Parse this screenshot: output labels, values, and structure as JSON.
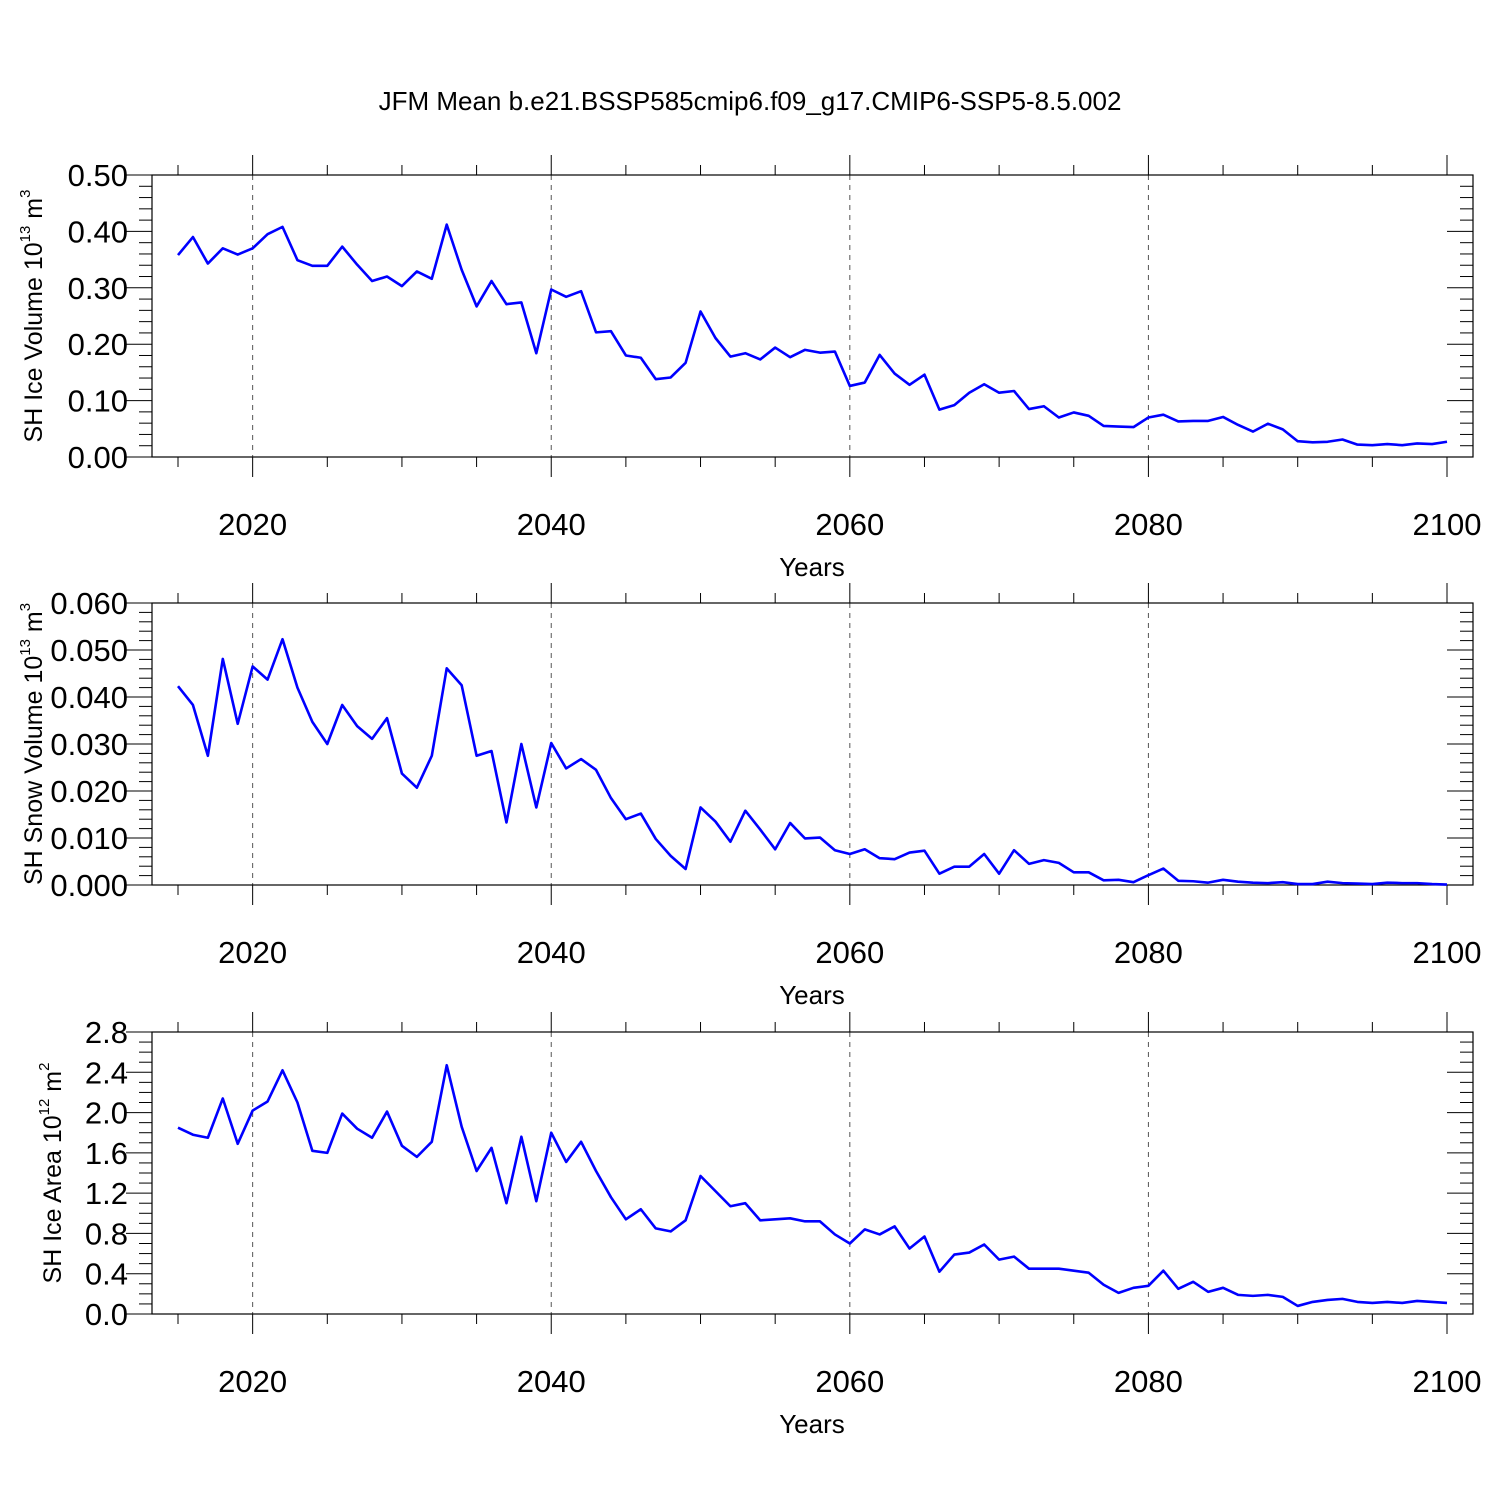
{
  "title": "JFM Mean b.e21.BSSP585cmip6.f09_g17.CMIP6-SSP5-8.5.002",
  "colors": {
    "line": "#0000ff",
    "axis": "#000000",
    "grid": "#555555"
  },
  "chart_data": [
    {
      "type": "line",
      "ylabel": {
        "main": "SH Ice Volume 10",
        "exp": "13",
        "unit": " m",
        "unit_exp": "3"
      },
      "xlabel": "Years",
      "xlim": [
        2015,
        2100
      ],
      "ylim": [
        0,
        0.5
      ],
      "x_ticks": [
        2020,
        2040,
        2060,
        2080,
        2100
      ],
      "x_tick_labels": [
        "2020",
        "2040",
        "2060",
        "2080",
        "2100"
      ],
      "y_ticks": [
        0,
        0.1,
        0.2,
        0.3,
        0.4,
        0.5
      ],
      "y_tick_labels": [
        "0.00",
        "0.10",
        "0.20",
        "0.30",
        "0.40",
        "0.50"
      ],
      "y_minor_step": 0.02,
      "gridlines_x": [
        2020,
        2040,
        2060,
        2080
      ],
      "series": [
        {
          "name": "SH Ice Volume",
          "x_start": 2015,
          "values": [
            0.358,
            0.39,
            0.343,
            0.37,
            0.359,
            0.37,
            0.395,
            0.408,
            0.349,
            0.339,
            0.339,
            0.373,
            0.341,
            0.312,
            0.32,
            0.303,
            0.329,
            0.316,
            0.412,
            0.332,
            0.267,
            0.312,
            0.271,
            0.274,
            0.184,
            0.297,
            0.284,
            0.294,
            0.221,
            0.223,
            0.18,
            0.176,
            0.138,
            0.141,
            0.167,
            0.258,
            0.211,
            0.178,
            0.184,
            0.173,
            0.194,
            0.177,
            0.19,
            0.185,
            0.187,
            0.126,
            0.132,
            0.181,
            0.148,
            0.128,
            0.146,
            0.084,
            0.092,
            0.114,
            0.129,
            0.114,
            0.117,
            0.085,
            0.09,
            0.07,
            0.079,
            0.073,
            0.055,
            0.054,
            0.053,
            0.07,
            0.075,
            0.063,
            0.064,
            0.064,
            0.071,
            0.057,
            0.045,
            0.059,
            0.049,
            0.028,
            0.026,
            0.027,
            0.031,
            0.022,
            0.021,
            0.023,
            0.021,
            0.024,
            0.023,
            0.027
          ]
        }
      ]
    },
    {
      "type": "line",
      "ylabel": {
        "main": "SH Snow Volume 10",
        "exp": "13",
        "unit": " m",
        "unit_exp": "3"
      },
      "xlabel": "Years",
      "xlim": [
        2015,
        2100
      ],
      "ylim": [
        0,
        0.06
      ],
      "x_ticks": [
        2020,
        2040,
        2060,
        2080,
        2100
      ],
      "x_tick_labels": [
        "2020",
        "2040",
        "2060",
        "2080",
        "2100"
      ],
      "y_ticks": [
        0,
        0.01,
        0.02,
        0.03,
        0.04,
        0.05,
        0.06
      ],
      "y_tick_labels": [
        "0.000",
        "0.010",
        "0.020",
        "0.030",
        "0.040",
        "0.050",
        "0.060"
      ],
      "y_minor_step": 0.002,
      "gridlines_x": [
        2020,
        2040,
        2060,
        2080
      ],
      "series": [
        {
          "name": "SH Snow Volume",
          "x_start": 2015,
          "values": [
            0.0423,
            0.0383,
            0.0275,
            0.0481,
            0.0343,
            0.0465,
            0.0437,
            0.0523,
            0.042,
            0.0347,
            0.03,
            0.0383,
            0.0338,
            0.0311,
            0.0355,
            0.0237,
            0.0207,
            0.0275,
            0.0461,
            0.0425,
            0.0275,
            0.0285,
            0.0133,
            0.03,
            0.0165,
            0.0302,
            0.0248,
            0.0268,
            0.0245,
            0.0185,
            0.014,
            0.0152,
            0.0098,
            0.0062,
            0.0034,
            0.0165,
            0.0135,
            0.0092,
            0.0158,
            0.0118,
            0.0076,
            0.0132,
            0.0099,
            0.0101,
            0.0074,
            0.0066,
            0.0076,
            0.0057,
            0.0055,
            0.0069,
            0.0073,
            0.0024,
            0.0039,
            0.0039,
            0.0066,
            0.0024,
            0.0074,
            0.0045,
            0.0053,
            0.0047,
            0.0027,
            0.0027,
            0.001,
            0.0011,
            0.0006,
            0.0021,
            0.0035,
            0.0009,
            0.0008,
            0.0005,
            0.0011,
            0.0007,
            0.0005,
            0.0004,
            0.0006,
            0.0002,
            0.0002,
            0.0007,
            0.0004,
            0.0003,
            0.0002,
            0.0005,
            0.0004,
            0.0004,
            0.0002,
            0.0001
          ]
        }
      ]
    },
    {
      "type": "line",
      "ylabel": {
        "main": "SH Ice Area 10",
        "exp": "12",
        "unit": " m",
        "unit_exp": "2"
      },
      "xlabel": "Years",
      "xlim": [
        2015,
        2100
      ],
      "ylim": [
        0,
        2.8
      ],
      "x_ticks": [
        2020,
        2040,
        2060,
        2080,
        2100
      ],
      "x_tick_labels": [
        "2020",
        "2040",
        "2060",
        "2080",
        "2100"
      ],
      "y_ticks": [
        0,
        0.4,
        0.8,
        1.2,
        1.6,
        2.0,
        2.4,
        2.8
      ],
      "y_tick_labels": [
        "0.0",
        "0.4",
        "0.8",
        "1.2",
        "1.6",
        "2.0",
        "2.4",
        "2.8"
      ],
      "y_minor_step": 0.1,
      "gridlines_x": [
        2020,
        2040,
        2060,
        2080
      ],
      "series": [
        {
          "name": "SH Ice Area",
          "x_start": 2015,
          "values": [
            1.85,
            1.78,
            1.75,
            2.14,
            1.69,
            2.02,
            2.11,
            2.42,
            2.1,
            1.62,
            1.6,
            1.99,
            1.84,
            1.75,
            2.01,
            1.67,
            1.56,
            1.71,
            2.47,
            1.86,
            1.42,
            1.65,
            1.1,
            1.76,
            1.12,
            1.8,
            1.51,
            1.71,
            1.42,
            1.16,
            0.94,
            1.04,
            0.85,
            0.82,
            0.93,
            1.37,
            1.22,
            1.07,
            1.1,
            0.93,
            0.94,
            0.95,
            0.92,
            0.92,
            0.79,
            0.7,
            0.84,
            0.79,
            0.87,
            0.65,
            0.77,
            0.42,
            0.59,
            0.61,
            0.69,
            0.54,
            0.57,
            0.45,
            0.45,
            0.45,
            0.43,
            0.41,
            0.29,
            0.21,
            0.26,
            0.28,
            0.43,
            0.25,
            0.32,
            0.22,
            0.26,
            0.19,
            0.18,
            0.19,
            0.17,
            0.08,
            0.12,
            0.14,
            0.15,
            0.12,
            0.11,
            0.12,
            0.11,
            0.13,
            0.12,
            0.11
          ]
        }
      ]
    }
  ]
}
